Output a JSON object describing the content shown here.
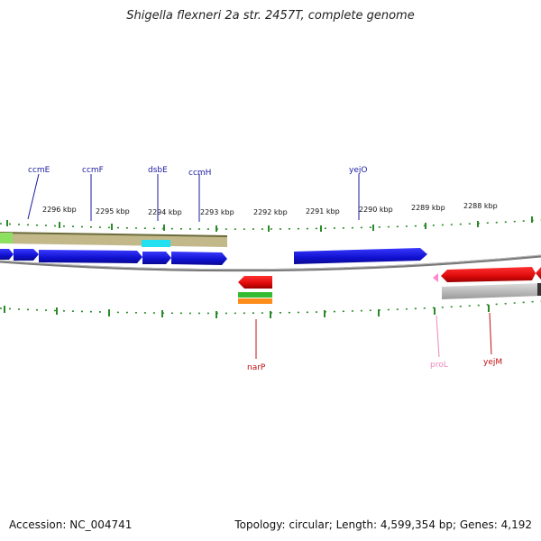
{
  "title": "Shigella flexneri 2a str. 2457T, complete genome",
  "footer": {
    "accession": "Accession: NC_004741",
    "topology": "Topology: circular; Length: 4,599,354 bp; Genes: 4,192"
  },
  "ruler_labels": [
    "2296 kbp",
    "2295 kbp",
    "2294 kbp",
    "2293 kbp",
    "2292 kbp",
    "2291 kbp",
    "2290 kbp",
    "2289 kbp",
    "2288 kbp"
  ],
  "gene_labels": {
    "top": [
      "ccmE",
      "ccmF",
      "dsbE",
      "ccmH",
      "yejO"
    ],
    "bottom": [
      "narP",
      "proL",
      "yejM"
    ]
  },
  "colors": {
    "forward_gene": "#1a1adb",
    "reverse_gene": "#e01010",
    "trna": "#ff88cc",
    "tick": "#2a8a2a",
    "backbone": "#888888",
    "operon_band": "#c2b88a",
    "cyan_feature": "#22e0f0",
    "label_top": "#1a1aa0",
    "label_bottom": "#c01010",
    "label_trna": "#ee88bb"
  }
}
